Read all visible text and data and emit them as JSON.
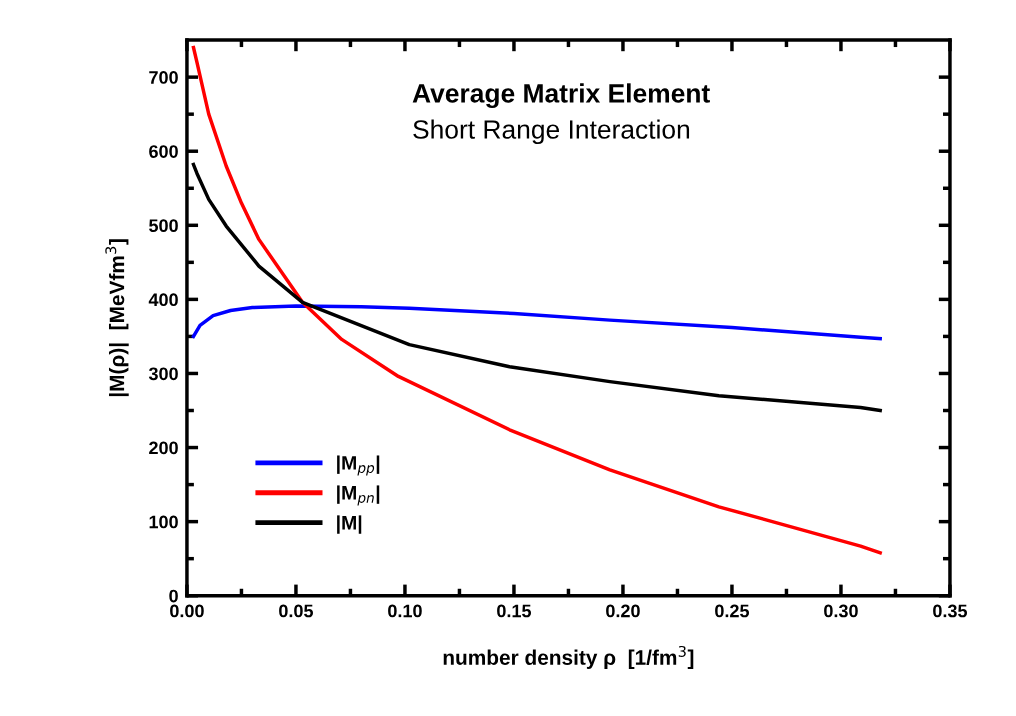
{
  "chart_data": {
    "type": "line",
    "title": "Average Matrix Element",
    "subtitle": "Short Range Interaction",
    "xlabel": "number density ρ  [1/fm$^{3}$]",
    "ylabel": "|M(ρ)|  [MeVfm$^{3}$]",
    "xlim": [
      0,
      0.35
    ],
    "ylim": [
      0,
      750
    ],
    "xticks": [
      "0.00",
      {
        "value": 0.025,
        "label": null
      },
      {
        "value": 0.05,
        "label": "0.05"
      },
      {
        "value": 0.075,
        "label": null
      },
      {
        "value": 0.1,
        "label": "0.10"
      },
      {
        "value": 0.125,
        "label": null
      },
      {
        "value": 0.15,
        "label": "0.15"
      },
      {
        "value": 0.175,
        "label": null
      },
      {
        "value": 0.2,
        "label": "0.20"
      },
      {
        "value": 0.225,
        "label": null
      },
      {
        "value": 0.25,
        "label": "0.25"
      },
      {
        "value": 0.275,
        "label": null
      },
      {
        "value": 0.3,
        "label": "0.30"
      },
      {
        "value": 0.325,
        "label": null
      },
      {
        "value": 0.35,
        "label": "0.35"
      }
    ],
    "yticks": [
      0,
      {
        "value": 50,
        "label": null
      },
      100,
      {
        "value": 150,
        "label": null
      },
      200,
      {
        "value": 250,
        "label": null
      },
      300,
      {
        "value": 350,
        "label": null
      },
      400,
      {
        "value": 450,
        "label": null
      },
      500,
      {
        "value": 550,
        "label": null
      },
      600,
      {
        "value": 650,
        "label": null
      },
      700
    ],
    "grid": false,
    "legend": "bottom left",
    "marker": "none",
    "line_style": "solid",
    "series": [
      {
        "name": "|M$_{pp}$|",
        "color": "#0000ff",
        "x": [
          0.003,
          0.006,
          0.012,
          0.02,
          0.03,
          0.05,
          0.08,
          0.102,
          0.15,
          0.194,
          0.25,
          0.309,
          0.318
        ],
        "values": [
          350,
          365,
          378,
          385,
          389,
          391,
          390,
          388,
          381,
          372,
          362,
          349,
          347
        ]
      },
      {
        "name": "|M$_{pn}$|",
        "color": "#ff0000",
        "x": [
          0.003,
          0.0046,
          0.01,
          0.018,
          0.025,
          0.033,
          0.053,
          0.071,
          0.097,
          0.148,
          0.194,
          0.244,
          0.309,
          0.318
        ],
        "values": [
          740,
          720,
          650,
          580,
          530,
          481,
          396,
          346,
          296,
          224,
          170,
          120,
          67,
          58
        ]
      },
      {
        "name": "|M|",
        "color": "#000000",
        "x": [
          0.003,
          0.0046,
          0.01,
          0.018,
          0.033,
          0.053,
          0.102,
          0.148,
          0.194,
          0.244,
          0.309,
          0.318
        ],
        "values": [
          582,
          570,
          535,
          499,
          445,
          396,
          339,
          309,
          289,
          270,
          254,
          250
        ]
      }
    ]
  }
}
